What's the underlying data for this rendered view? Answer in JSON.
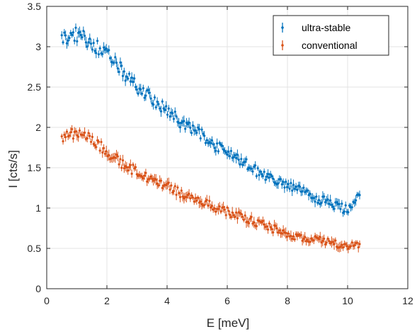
{
  "chart_data": {
    "type": "scatter",
    "title": "",
    "xlabel": "E [meV]",
    "ylabel": "I [cts/s]",
    "xlim": [
      0,
      12
    ],
    "ylim": [
      0,
      3.5
    ],
    "xticks": [
      0,
      2,
      4,
      6,
      8,
      10,
      12
    ],
    "yticks": [
      0,
      0.5,
      1,
      1.5,
      2,
      2.5,
      3,
      3.5
    ],
    "xtick_labels": [
      "0",
      "2",
      "4",
      "6",
      "8",
      "10",
      "12"
    ],
    "ytick_labels": [
      "0",
      "0.5",
      "1",
      "1.5",
      "2",
      "2.5",
      "3",
      "3.5"
    ],
    "grid": true,
    "legend_position": "top-right",
    "error_bars": true,
    "series": [
      {
        "name": "ultra-stable",
        "color": "#0072BD",
        "x": [
          0.5,
          1.0,
          1.5,
          2.0,
          2.5,
          3.0,
          3.5,
          4.0,
          4.5,
          5.0,
          5.5,
          6.0,
          6.5,
          7.0,
          7.5,
          8.0,
          8.5,
          9.0,
          9.5,
          10.0,
          10.4
        ],
        "y": [
          3.1,
          3.15,
          3.05,
          2.9,
          2.7,
          2.5,
          2.35,
          2.2,
          2.05,
          1.95,
          1.8,
          1.7,
          1.58,
          1.45,
          1.35,
          1.28,
          1.2,
          1.12,
          1.05,
          0.97,
          1.2
        ]
      },
      {
        "name": "conventional",
        "color": "#D95319",
        "x": [
          0.5,
          1.0,
          1.5,
          2.0,
          2.5,
          3.0,
          3.5,
          4.0,
          4.5,
          5.0,
          5.5,
          6.0,
          6.5,
          7.0,
          7.5,
          8.0,
          8.5,
          9.0,
          9.5,
          10.0,
          10.4
        ],
        "y": [
          1.87,
          1.95,
          1.85,
          1.7,
          1.55,
          1.45,
          1.35,
          1.27,
          1.18,
          1.1,
          1.02,
          0.96,
          0.88,
          0.82,
          0.75,
          0.68,
          0.63,
          0.6,
          0.56,
          0.52,
          0.55
        ]
      }
    ]
  }
}
